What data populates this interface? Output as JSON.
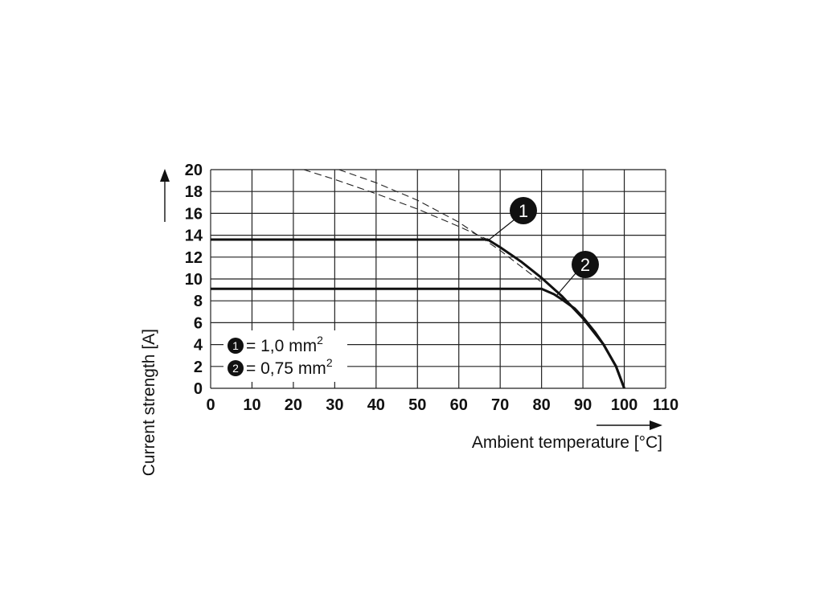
{
  "chart_data": {
    "type": "line",
    "xlabel": "Ambient temperature [°C]",
    "ylabel": "Current strength [A]",
    "xlim": [
      0,
      110
    ],
    "ylim": [
      0,
      20
    ],
    "x_ticks": [
      "0",
      "10",
      "20",
      "30",
      "40",
      "50",
      "60",
      "70",
      "80",
      "90",
      "100",
      "110"
    ],
    "y_ticks": [
      "0",
      "2",
      "4",
      "6",
      "8",
      "10",
      "12",
      "14",
      "16",
      "18",
      "20"
    ],
    "grid": true,
    "series": [
      {
        "marker": "1",
        "name": "1,0 mm",
        "name_sup": "2",
        "style": "solid",
        "points": [
          [
            0,
            13.6
          ],
          [
            67,
            13.6
          ],
          [
            70,
            12.9
          ],
          [
            75,
            11.6
          ],
          [
            80,
            10.1
          ],
          [
            85,
            8.4
          ],
          [
            90,
            6.4
          ],
          [
            95,
            4.0
          ],
          [
            98,
            2.0
          ],
          [
            100,
            0
          ]
        ]
      },
      {
        "marker": "2",
        "name": "0,75 mm",
        "name_sup": "2",
        "style": "solid",
        "points": [
          [
            0,
            9.1
          ],
          [
            80,
            9.1
          ],
          [
            83,
            8.6
          ],
          [
            85,
            8.1
          ],
          [
            88,
            7.3
          ],
          [
            90,
            6.5
          ],
          [
            93,
            5.1
          ],
          [
            95,
            4.0
          ],
          [
            98,
            2.0
          ],
          [
            100,
            0
          ]
        ]
      },
      {
        "style": "dashed",
        "points": [
          [
            22.5,
            20
          ],
          [
            30,
            19.1
          ],
          [
            40,
            17.8
          ],
          [
            50,
            16.4
          ],
          [
            60,
            14.8
          ],
          [
            67,
            13.6
          ]
        ]
      },
      {
        "style": "dashed",
        "points": [
          [
            31,
            20
          ],
          [
            40,
            18.8
          ],
          [
            50,
            17.2
          ],
          [
            60,
            15.2
          ],
          [
            70,
            12.6
          ],
          [
            80,
            9.7
          ]
        ]
      }
    ],
    "legend_position": "bottom-left"
  }
}
